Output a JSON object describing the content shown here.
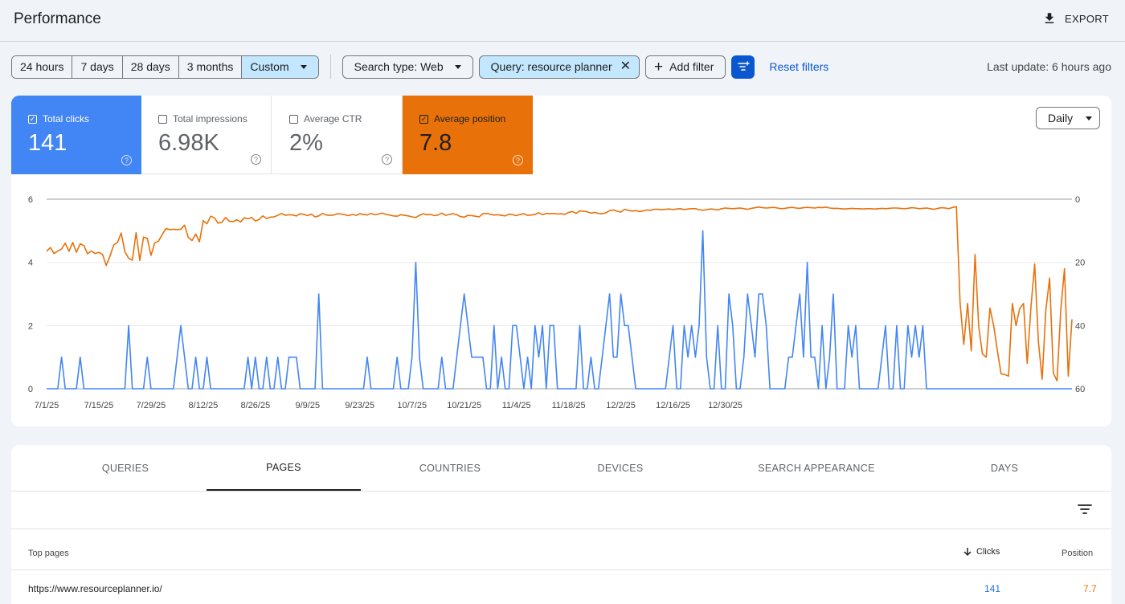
{
  "header": {
    "title": "Performance",
    "export_label": "EXPORT"
  },
  "date_range": {
    "options": [
      "24 hours",
      "7 days",
      "28 days",
      "3 months"
    ],
    "selected": "Custom"
  },
  "filters": {
    "search_type": "Search type: Web",
    "query": "Query: resource planner",
    "add_filter": "Add filter",
    "reset": "Reset filters",
    "last_update": "Last update: 6 hours ago"
  },
  "metrics": {
    "clicks": {
      "label": "Total clicks",
      "value": "141",
      "checked": true
    },
    "impressions": {
      "label": "Total impressions",
      "value": "6.98K",
      "checked": false
    },
    "ctr": {
      "label": "Average CTR",
      "value": "2%",
      "checked": false
    },
    "position": {
      "label": "Average position",
      "value": "7.8",
      "checked": true
    }
  },
  "granularity": "Daily",
  "colors": {
    "clicks": "#4285f4",
    "position": "#e8710a",
    "accent": "#0b57d0"
  },
  "chart_data": {
    "type": "line",
    "x_ticks": [
      "7/1/25",
      "7/15/25",
      "7/29/25",
      "8/12/25",
      "8/26/25",
      "9/9/25",
      "9/23/25",
      "10/7/25",
      "10/21/25",
      "11/4/25",
      "11/18/25",
      "12/2/25",
      "12/16/25",
      "12/30/25"
    ],
    "x_range": [
      "7/1/25",
      "1/12/26"
    ],
    "y_left": {
      "ticks": [
        0,
        2,
        4,
        6
      ],
      "range": [
        0,
        6
      ],
      "series": "Clicks"
    },
    "y_right": {
      "ticks": [
        0,
        20,
        40,
        60
      ],
      "range": [
        0,
        60
      ],
      "inverted": true,
      "series": "Position"
    },
    "grid": true,
    "series": [
      {
        "metric": "clicks",
        "axis": "left",
        "values": [
          0,
          0,
          0,
          0,
          1,
          0,
          0,
          0,
          0,
          1,
          0,
          0,
          0,
          0,
          0,
          0,
          0,
          0,
          0,
          0,
          0,
          0,
          2,
          0,
          0,
          0,
          0,
          1,
          0,
          0,
          0,
          0,
          0,
          0,
          0,
          1,
          2,
          1,
          0,
          0,
          1,
          0,
          0,
          1,
          0,
          0,
          0,
          0,
          0,
          0,
          0,
          0,
          0,
          0,
          1,
          0,
          1,
          0,
          0,
          1,
          0,
          0,
          1,
          0,
          0,
          1,
          1,
          1,
          0,
          0,
          0,
          0,
          0,
          3,
          0,
          0,
          0,
          0,
          0,
          0,
          0,
          0,
          0,
          0,
          0,
          0,
          1,
          0,
          0,
          0,
          0,
          0,
          0,
          0,
          1,
          0,
          0,
          0,
          1,
          4,
          1,
          0,
          0,
          0,
          0,
          0,
          1,
          0,
          0,
          0,
          1,
          2,
          3,
          2,
          1,
          1,
          1,
          1,
          0,
          0,
          2,
          0,
          1,
          0,
          0,
          2,
          2,
          1,
          0,
          1,
          0,
          2,
          1,
          2,
          0,
          2,
          2,
          0,
          0,
          0,
          0,
          0,
          0,
          2,
          0,
          0,
          1,
          0,
          0,
          1,
          2,
          3,
          1,
          1,
          3,
          2,
          2,
          1,
          0,
          0,
          0,
          0,
          0,
          0,
          0,
          0,
          0,
          1,
          2,
          0,
          0,
          2,
          1,
          2,
          1,
          2,
          5,
          1,
          0,
          0,
          2,
          0,
          0,
          3,
          2,
          0,
          0,
          1,
          3,
          2,
          1,
          3,
          3,
          2,
          0,
          0,
          0,
          0,
          0,
          1,
          1,
          2,
          3,
          1,
          4,
          1,
          1,
          0,
          2,
          0,
          1,
          3,
          0,
          0,
          0,
          2,
          1,
          2,
          0,
          0,
          0,
          0,
          0,
          0,
          1,
          2,
          0,
          0,
          2,
          0,
          0,
          2,
          1,
          2,
          1,
          2,
          0,
          0,
          0,
          0,
          0,
          0,
          0,
          0,
          0,
          0,
          0,
          0,
          0,
          0,
          0,
          0,
          0,
          0,
          0,
          0,
          0,
          0,
          0,
          0,
          0,
          0,
          0,
          0,
          0,
          0,
          0,
          0,
          0,
          0,
          0,
          0,
          0,
          0,
          0,
          0
        ]
      },
      {
        "metric": "position",
        "axis": "right",
        "values": [
          16.5,
          15.3,
          17.2,
          16.4,
          15.8,
          13.9,
          16.5,
          13.7,
          16.8,
          14.1,
          14.7,
          17.3,
          16.4,
          17.2,
          16.8,
          17.5,
          21.0,
          18.0,
          14.5,
          13.7,
          10.7,
          16.6,
          18.7,
          19.3,
          10.6,
          19.4,
          12.0,
          12.4,
          17.8,
          13.8,
          13.3,
          11.2,
          9.3,
          9.6,
          9.5,
          9.6,
          9.5,
          8.2,
          12.1,
          13.1,
          11.0,
          13.5,
          6.8,
          7.8,
          5.4,
          5.9,
          7.6,
          7.3,
          5.8,
          7.0,
          7.1,
          6.5,
          7.2,
          5.9,
          6.2,
          5.8,
          6.9,
          6.4,
          5.3,
          6.1,
          5.7,
          5.6,
          5.1,
          4.5,
          5.1,
          4.9,
          5.0,
          5.3,
          4.6,
          4.8,
          5.2,
          4.7,
          5.6,
          5.3,
          4.5,
          5.0,
          5.1,
          5.0,
          4.6,
          4.7,
          4.9,
          5.2,
          4.8,
          5.1,
          4.6,
          4.8,
          5.0,
          4.5,
          4.9,
          4.7,
          4.4,
          4.8,
          5.0,
          5.3,
          5.4,
          4.9,
          5.1,
          5.3,
          5.6,
          5.8,
          5.1,
          4.6,
          4.9,
          4.8,
          5.2,
          5.0,
          4.4,
          5.1,
          4.8,
          4.6,
          4.9,
          5.5,
          5.7,
          5.1,
          5.2,
          5.4,
          5.6,
          4.6,
          4.5,
          4.8,
          5.0,
          4.9,
          5.1,
          5.3,
          4.7,
          4.9,
          5.2,
          4.8,
          4.6,
          5.1,
          5.0,
          4.8,
          4.3,
          4.9,
          4.5,
          4.6,
          4.5,
          4.7,
          4.6,
          4.8,
          4.2,
          3.9,
          4.5,
          3.7,
          3.8,
          4.0,
          4.4,
          4.2,
          4.5,
          4.6,
          4.3,
          3.6,
          3.4,
          3.8,
          4.1,
          3.2,
          3.5,
          3.8,
          3.6,
          3.9,
          3.7,
          3.4,
          3.5,
          3.2,
          3.2,
          3.3,
          3.2,
          3.1,
          3.3,
          3.1,
          3.0,
          3.3,
          3.1,
          3.0,
          3.0,
          3.3,
          3.5,
          3.3,
          3.1,
          3.2,
          3.4,
          3.0,
          2.8,
          2.9,
          3.0,
          2.9,
          2.8,
          3.0,
          3.2,
          2.9,
          2.7,
          2.5,
          2.7,
          2.8,
          2.7,
          2.6,
          2.8,
          3.0,
          2.9,
          2.7,
          2.6,
          2.8,
          2.9,
          2.7,
          2.6,
          2.7,
          2.8,
          2.6,
          2.7,
          2.5,
          2.8,
          2.9,
          2.9,
          3.0,
          3.1,
          3.0,
          2.9,
          3.0,
          3.0,
          3.1,
          3.0,
          3.0,
          3.1,
          3.0,
          2.9,
          3.0,
          2.9,
          2.8,
          2.8,
          2.9,
          3.0,
          2.9,
          2.7,
          2.8,
          3.0,
          2.9,
          2.8,
          3.0,
          3.2,
          2.9,
          2.7,
          2.8,
          3.0,
          2.6,
          2.4,
          33.0,
          46.0,
          33.0,
          48.0,
          17.5,
          40.4,
          49.0,
          50.0,
          34.5,
          40.0,
          48.0,
          55.3,
          55.5,
          56.0,
          33.0,
          40.0,
          34.6,
          33.0,
          52.0,
          34.0,
          20.5,
          45.0,
          57.0,
          35.0,
          25.0,
          55.0,
          57.5,
          35.0,
          22.0,
          56.0,
          38.0
        ]
      }
    ]
  },
  "tabs": [
    "QUERIES",
    "PAGES",
    "COUNTRIES",
    "DEVICES",
    "SEARCH APPEARANCE",
    "DAYS"
  ],
  "active_tab": "PAGES",
  "table": {
    "columns": {
      "page": "Top pages",
      "clicks": "Clicks",
      "position": "Position"
    },
    "rows": [
      {
        "page": "https://www.resourceplanner.io/",
        "clicks": "141",
        "position": "7.7"
      }
    ]
  }
}
